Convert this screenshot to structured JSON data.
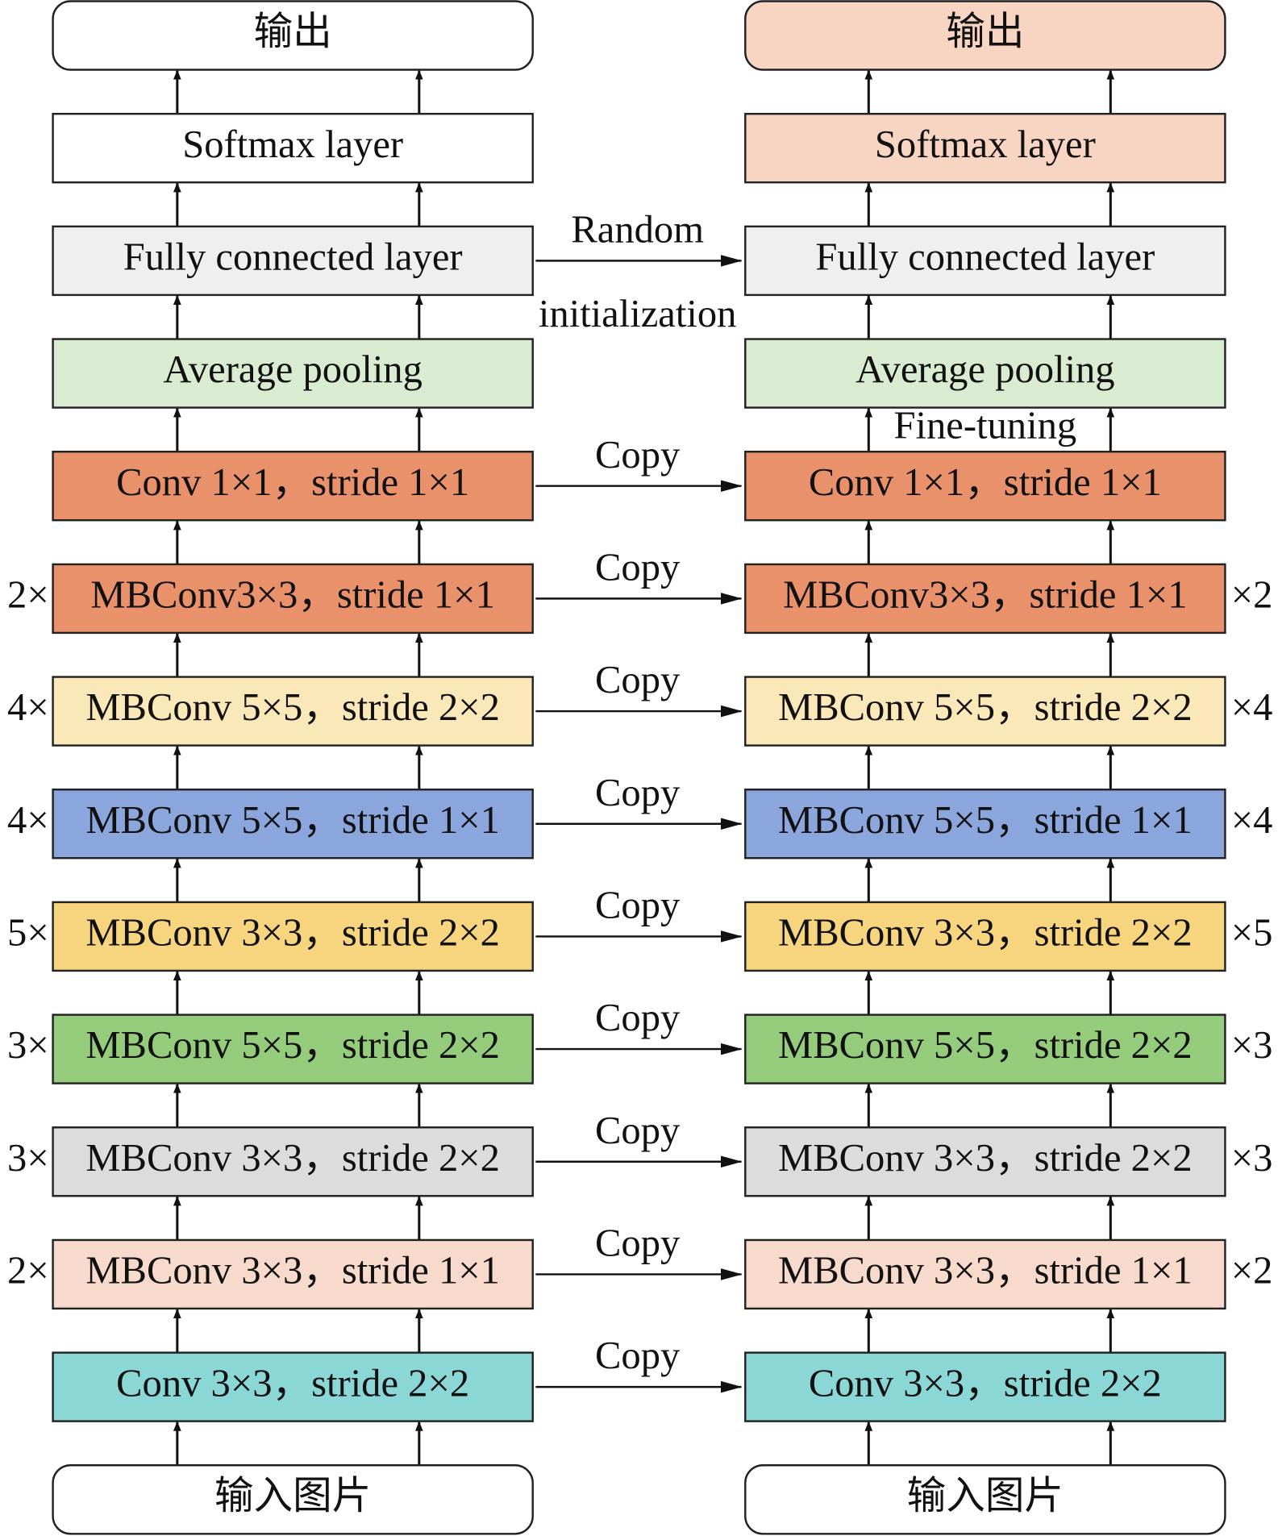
{
  "left_column": {
    "blocks": [
      {
        "label": "输出",
        "fill": "#ffffff",
        "rounded": true
      },
      {
        "label": "Softmax layer",
        "fill": "#ffffff"
      },
      {
        "label": "Fully connected layer",
        "fill": "#efefef",
        "link": {
          "above": "Random",
          "below": "initialization"
        }
      },
      {
        "label": "Average pooling",
        "fill": "#d9ecd1"
      },
      {
        "label": "Conv 1×1，stride 1×1",
        "fill": "#e8916b",
        "link": {
          "above": "Copy"
        }
      },
      {
        "label": "MBConv3×3，stride 1×1",
        "fill": "#e8916b",
        "repeat": "2×",
        "link": {
          "above": "Copy"
        }
      },
      {
        "label": "MBConv 5×5，stride 2×2",
        "fill": "#fbe8b8",
        "repeat": "4×",
        "link": {
          "above": "Copy"
        }
      },
      {
        "label": "MBConv 5×5，stride 1×1",
        "fill": "#8aa6dc",
        "repeat": "4×",
        "link": {
          "above": "Copy"
        }
      },
      {
        "label": "MBConv 3×3，stride 2×2",
        "fill": "#f6d57e",
        "repeat": "5×",
        "link": {
          "above": "Copy"
        }
      },
      {
        "label": "MBConv 5×5，stride 2×2",
        "fill": "#95cc7b",
        "repeat": "3×",
        "link": {
          "above": "Copy"
        }
      },
      {
        "label": "MBConv 3×3，stride 2×2",
        "fill": "#dcdcdc",
        "repeat": "3×",
        "link": {
          "above": "Copy"
        }
      },
      {
        "label": "MBConv 3×3，stride 1×1",
        "fill": "#f7dacb",
        "repeat": "2×",
        "link": {
          "above": "Copy"
        }
      },
      {
        "label": "Conv 3×3，stride 2×2",
        "fill": "#8ad7d5",
        "link": {
          "above": "Copy"
        }
      },
      {
        "label": "输入图片",
        "fill": "#ffffff",
        "rounded": true
      }
    ]
  },
  "right_column": {
    "blocks": [
      {
        "label": "输出",
        "fill": "#f8d5c3",
        "rounded": true
      },
      {
        "label": "Softmax layer",
        "fill": "#f8d5c3"
      },
      {
        "label": "Fully connected layer",
        "fill": "#efefef"
      },
      {
        "label": "Average pooling",
        "fill": "#d9ecd1",
        "note_below": "Fine-tuning"
      },
      {
        "label": "Conv 1×1，stride 1×1",
        "fill": "#e8916b"
      },
      {
        "label": "MBConv3×3，stride 1×1",
        "fill": "#e8916b",
        "repeat": "×2"
      },
      {
        "label": "MBConv 5×5，stride 2×2",
        "fill": "#fbe8b8",
        "repeat": "×4"
      },
      {
        "label": "MBConv 5×5，stride 1×1",
        "fill": "#8aa6dc",
        "repeat": "×4"
      },
      {
        "label": "MBConv 3×3，stride 2×2",
        "fill": "#f6d57e",
        "repeat": "×5"
      },
      {
        "label": "MBConv 5×5，stride 2×2",
        "fill": "#95cc7b",
        "repeat": "×3"
      },
      {
        "label": "MBConv 3×3，stride 2×2",
        "fill": "#dcdcdc",
        "repeat": "×3"
      },
      {
        "label": "MBConv 3×3，stride 1×1",
        "fill": "#f7dacb",
        "repeat": "×2"
      },
      {
        "label": "Conv 3×3，stride 2×2",
        "fill": "#8ad7d5"
      },
      {
        "label": "输入图片",
        "fill": "#ffffff",
        "rounded": true
      }
    ]
  }
}
